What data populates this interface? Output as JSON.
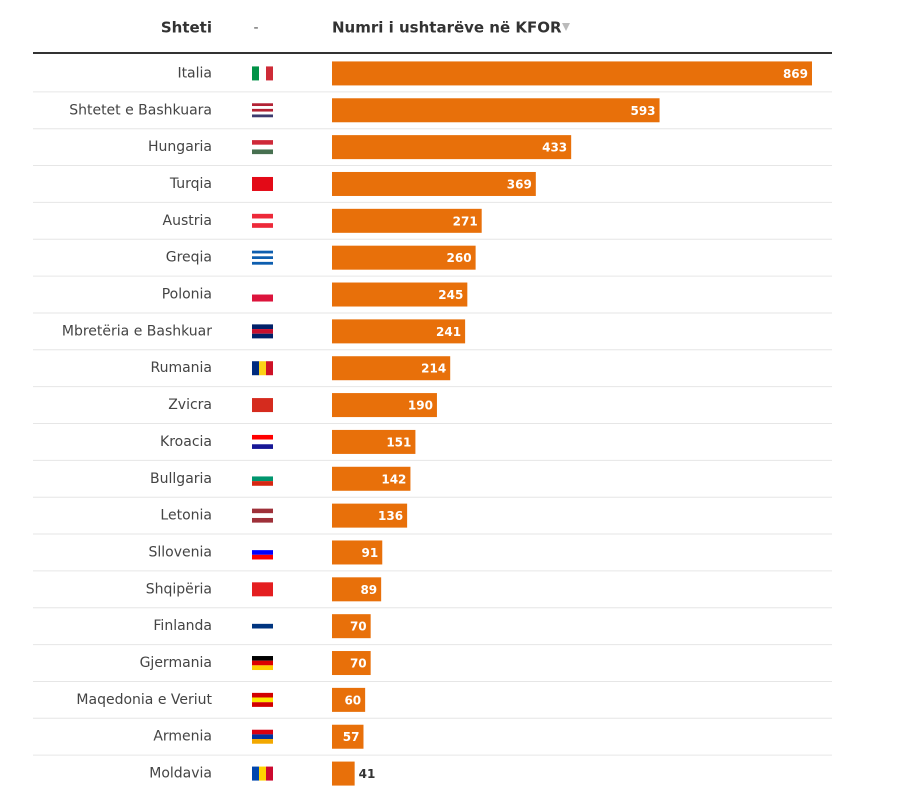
{
  "chart_data": {
    "type": "bar",
    "columns": [
      "Shteti",
      "-",
      "Numri i ushtarëve në KFOR"
    ],
    "categories": [
      "Italia",
      "Shtetet e Bashkuara",
      "Hungaria",
      "Turqia",
      "Austria",
      "Greqia",
      "Polonia",
      "Mbretëria e Bashkuar",
      "Rumania",
      "Zvicra",
      "Kroacia",
      "Bullgaria",
      "Letonia",
      "Sllovenia",
      "Shqipëria",
      "Finlanda",
      "Gjermania",
      "Maqedonia e Veriut",
      "Armenia",
      "Moldavia"
    ],
    "values": [
      869,
      593,
      433,
      369,
      271,
      260,
      245,
      241,
      214,
      190,
      151,
      142,
      136,
      91,
      89,
      70,
      70,
      60,
      57,
      41
    ],
    "color": "#e8700a"
  }
}
